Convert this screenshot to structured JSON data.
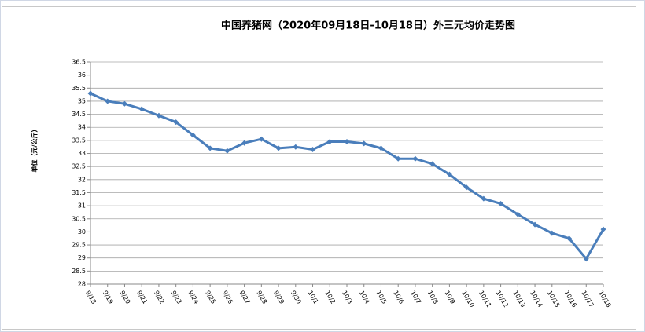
{
  "chart_data": {
    "type": "line",
    "title": "中国养猪网（2020年09月18日-10月18日）外三元均价走势图",
    "y_label": "单位（元/公斤）",
    "categories": [
      "9/18",
      "9/19",
      "9/20",
      "9/21",
      "9/22",
      "9/23",
      "9/24",
      "9/25",
      "9/26",
      "9/27",
      "9/28",
      "9/29",
      "9/30",
      "10/1",
      "10/2",
      "10/3",
      "10/4",
      "10/5",
      "10/6",
      "10/7",
      "10/8",
      "10/9",
      "10/10",
      "10/11",
      "10/12",
      "10/13",
      "10/14",
      "10/15",
      "10/16",
      "10/17",
      "10/18"
    ],
    "values": [
      35.3,
      35.0,
      34.9,
      34.7,
      34.45,
      34.2,
      33.7,
      33.2,
      33.1,
      33.4,
      33.55,
      33.2,
      33.25,
      33.15,
      33.45,
      33.45,
      33.38,
      33.2,
      32.8,
      32.8,
      32.6,
      32.2,
      31.7,
      31.27,
      31.08,
      30.67,
      30.28,
      29.95,
      29.75,
      28.97,
      30.1
    ],
    "color": "#4a7ebb",
    "ylim": [
      28,
      36.5
    ],
    "yticks": [
      28,
      28.5,
      29,
      29.5,
      30,
      30.5,
      31,
      31.5,
      32,
      32.5,
      33,
      33.5,
      34,
      34.5,
      35,
      35.5,
      36,
      36.5
    ],
    "grid": true
  }
}
